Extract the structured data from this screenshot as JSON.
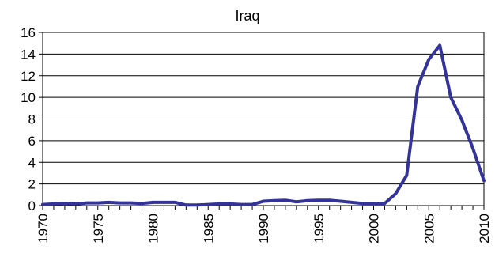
{
  "chart_data": {
    "type": "line",
    "title": "Iraq",
    "xlabel": "",
    "ylabel": "",
    "xlim": [
      1970,
      2010
    ],
    "ylim": [
      0,
      16
    ],
    "x_ticks": [
      1970,
      1975,
      1980,
      1985,
      1990,
      1995,
      2000,
      2005,
      2010
    ],
    "y_ticks": [
      0,
      2,
      4,
      6,
      8,
      10,
      12,
      14,
      16
    ],
    "grid": "horizontal",
    "legend": "none",
    "series": [
      {
        "color": "#333399",
        "x": [
          1970,
          1971,
          1972,
          1973,
          1974,
          1975,
          1976,
          1977,
          1978,
          1979,
          1980,
          1981,
          1982,
          1983,
          1984,
          1985,
          1986,
          1987,
          1988,
          1989,
          1990,
          1991,
          1992,
          1993,
          1994,
          1995,
          1996,
          1997,
          1998,
          1999,
          2000,
          2001,
          2002,
          2003,
          2004,
          2005,
          2006,
          2007,
          2008,
          2009,
          2010
        ],
        "y": [
          0.1,
          0.15,
          0.2,
          0.15,
          0.25,
          0.25,
          0.3,
          0.25,
          0.25,
          0.2,
          0.3,
          0.3,
          0.3,
          0.05,
          0.05,
          0.1,
          0.15,
          0.15,
          0.1,
          0.1,
          0.4,
          0.45,
          0.5,
          0.35,
          0.45,
          0.5,
          0.5,
          0.4,
          0.3,
          0.2,
          0.2,
          0.2,
          1.1,
          2.8,
          11.0,
          13.5,
          14.8,
          10.0,
          7.9,
          5.3,
          2.3
        ]
      }
    ]
  }
}
